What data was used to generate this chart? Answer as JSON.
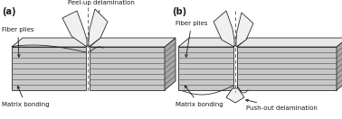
{
  "bg_color": "#ffffff",
  "label_a": "(a)",
  "label_b": "(b)",
  "text_peel_up": "Peel-up delamination",
  "text_push_out": "Push-out delamination",
  "text_fiber_plies_a": "Fiber plies",
  "text_fiber_plies_b": "Fiber plies",
  "text_matrix_a": "Matrix bonding",
  "text_matrix_b": "Matrix bonding",
  "line_color": "#1a1a1a",
  "face_color_front": "#c8c8c8",
  "face_color_top": "#e8e8e8",
  "face_color_right": "#a8a8a8",
  "stripe_color": "#606060",
  "flap_face": "#f0f0f0",
  "dashed_color": "#666666"
}
